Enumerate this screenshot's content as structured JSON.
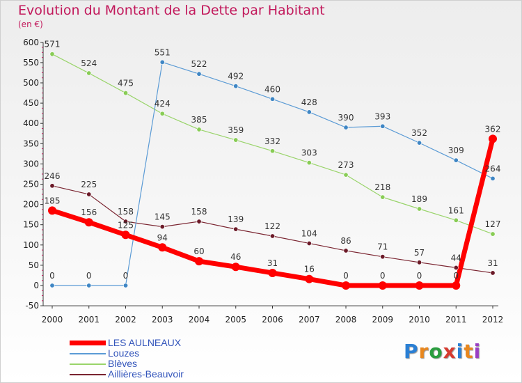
{
  "title": "Evolution du Montant de la Dette par Habitant",
  "subtitle": "(en €)",
  "logo": "Proxiti",
  "colors": {
    "title": "#c2185b",
    "axis": "#333333",
    "tick_minor": "#c2185b",
    "legend_text": "#3355bb"
  },
  "chart_data": {
    "type": "line",
    "x": [
      "2000",
      "2001",
      "2002",
      "2003",
      "2004",
      "2005",
      "2006",
      "2007",
      "2008",
      "2009",
      "2010",
      "2011",
      "2012"
    ],
    "ylim": [
      -50,
      600
    ],
    "yticks": [
      -50,
      0,
      50,
      100,
      150,
      200,
      250,
      300,
      350,
      400,
      450,
      500,
      550,
      600
    ],
    "grid": false,
    "legend_position": "bottom-left",
    "series": [
      {
        "name": "Aillières-Beauvoir",
        "color": "#7a2430",
        "dot": "#6b1a28",
        "thick": false,
        "values": [
          246,
          225,
          158,
          145,
          158,
          139,
          122,
          104,
          86,
          71,
          57,
          44,
          31
        ]
      },
      {
        "name": "Blèves",
        "color": "#99d46a",
        "dot": "#88cc55",
        "thick": false,
        "values": [
          571,
          524,
          475,
          424,
          385,
          359,
          332,
          303,
          273,
          218,
          189,
          161,
          127
        ]
      },
      {
        "name": "Louzes",
        "color": "#5b9bd5",
        "dot": "#3f86c4",
        "thick": false,
        "values": [
          0,
          0,
          0,
          551,
          522,
          492,
          460,
          428,
          390,
          393,
          352,
          309,
          264
        ]
      },
      {
        "name": "LES AULNEAUX",
        "color": "#ff0000",
        "dot": "#ff0000",
        "thick": true,
        "values": [
          185,
          156,
          125,
          94,
          60,
          46,
          31,
          16,
          0,
          0,
          0,
          0,
          362
        ]
      }
    ],
    "legend_order": [
      "LES AULNEAUX",
      "Louzes",
      "Blèves",
      "Aillières-Beauvoir"
    ]
  }
}
